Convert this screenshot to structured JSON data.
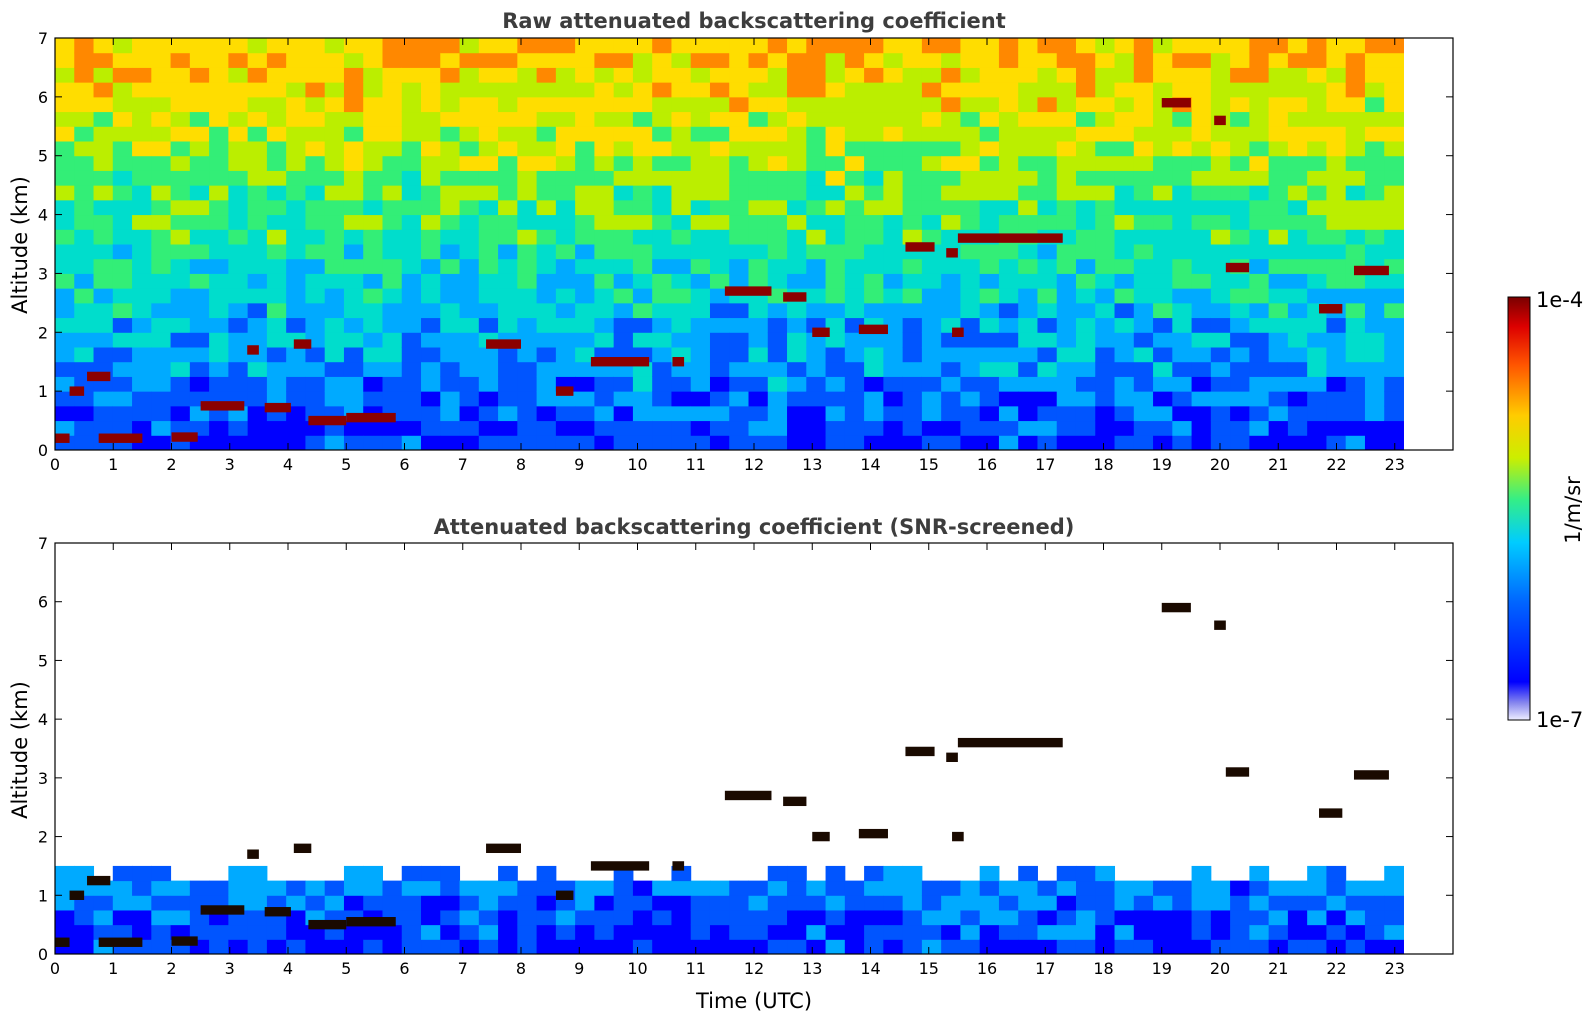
{
  "chart_data": [
    {
      "type": "heatmap",
      "title": "Raw attenuated backscattering coefficient",
      "ylabel": "Altitude (km)",
      "xlabel": "",
      "xlim": [
        0,
        24
      ],
      "ylim": [
        0,
        7
      ],
      "x_ticks": [
        "0",
        "1",
        "2",
        "3",
        "4",
        "5",
        "6",
        "7",
        "8",
        "9",
        "10",
        "11",
        "12",
        "13",
        "14",
        "15",
        "16",
        "17",
        "18",
        "19",
        "20",
        "21",
        "22",
        "23"
      ],
      "y_ticks": [
        "0",
        "1",
        "2",
        "3",
        "4",
        "5",
        "6",
        "7"
      ],
      "data_end_time": 23.15,
      "cloud_layers": [
        {
          "t0": 0.0,
          "t1": 0.25,
          "h": 0.2
        },
        {
          "t0": 0.25,
          "t1": 0.5,
          "h": 1.0
        },
        {
          "t0": 0.55,
          "t1": 0.95,
          "h": 1.25
        },
        {
          "t0": 0.75,
          "t1": 1.5,
          "h": 0.2
        },
        {
          "t0": 2.0,
          "t1": 2.45,
          "h": 0.22
        },
        {
          "t0": 2.5,
          "t1": 3.25,
          "h": 0.75
        },
        {
          "t0": 3.3,
          "t1": 3.5,
          "h": 1.7
        },
        {
          "t0": 3.6,
          "t1": 4.05,
          "h": 0.72
        },
        {
          "t0": 4.1,
          "t1": 4.4,
          "h": 1.8
        },
        {
          "t0": 4.35,
          "t1": 5.0,
          "h": 0.5
        },
        {
          "t0": 5.0,
          "t1": 5.85,
          "h": 0.55
        },
        {
          "t0": 7.4,
          "t1": 8.0,
          "h": 1.8
        },
        {
          "t0": 8.6,
          "t1": 8.9,
          "h": 1.0
        },
        {
          "t0": 9.2,
          "t1": 10.2,
          "h": 1.5
        },
        {
          "t0": 10.6,
          "t1": 10.8,
          "h": 1.5
        },
        {
          "t0": 11.5,
          "t1": 12.3,
          "h": 2.7
        },
        {
          "t0": 12.5,
          "t1": 12.9,
          "h": 2.6
        },
        {
          "t0": 13.0,
          "t1": 13.3,
          "h": 2.0
        },
        {
          "t0": 13.8,
          "t1": 14.3,
          "h": 2.05
        },
        {
          "t0": 14.6,
          "t1": 15.1,
          "h": 3.45
        },
        {
          "t0": 15.3,
          "t1": 15.5,
          "h": 3.35
        },
        {
          "t0": 15.4,
          "t1": 15.6,
          "h": 2.0
        },
        {
          "t0": 15.5,
          "t1": 17.3,
          "h": 3.6
        },
        {
          "t0": 20.1,
          "t1": 20.5,
          "h": 3.1
        },
        {
          "t0": 21.7,
          "t1": 22.1,
          "h": 2.4
        },
        {
          "t0": 22.3,
          "t1": 22.9,
          "h": 3.05
        },
        {
          "t0": 19.0,
          "t1": 19.5,
          "h": 5.9
        },
        {
          "t0": 19.9,
          "t1": 20.1,
          "h": 5.6
        }
      ],
      "colorbar": {
        "min_label": "1e-7",
        "max_label": "1e-4",
        "label": "1/m/sr",
        "scale": "log"
      }
    },
    {
      "type": "heatmap",
      "title": "Attenuated backscattering coefficient (SNR-screened)",
      "ylabel": "Altitude (km)",
      "xlabel": "Time (UTC)",
      "xlim": [
        0,
        24
      ],
      "ylim": [
        0,
        7
      ],
      "x_ticks": [
        "0",
        "1",
        "2",
        "3",
        "4",
        "5",
        "6",
        "7",
        "8",
        "9",
        "10",
        "11",
        "12",
        "13",
        "14",
        "15",
        "16",
        "17",
        "18",
        "19",
        "20",
        "21",
        "22",
        "23"
      ],
      "y_ticks": [
        "0",
        "1",
        "2",
        "3",
        "4",
        "5",
        "6",
        "7"
      ]
    }
  ],
  "colormap": [
    "#0000ff",
    "#0055ff",
    "#00aaff",
    "#00ddcc",
    "#33ee77",
    "#bbee00",
    "#ffdd00",
    "#ff8800",
    "#ff2200",
    "#8b0000"
  ]
}
